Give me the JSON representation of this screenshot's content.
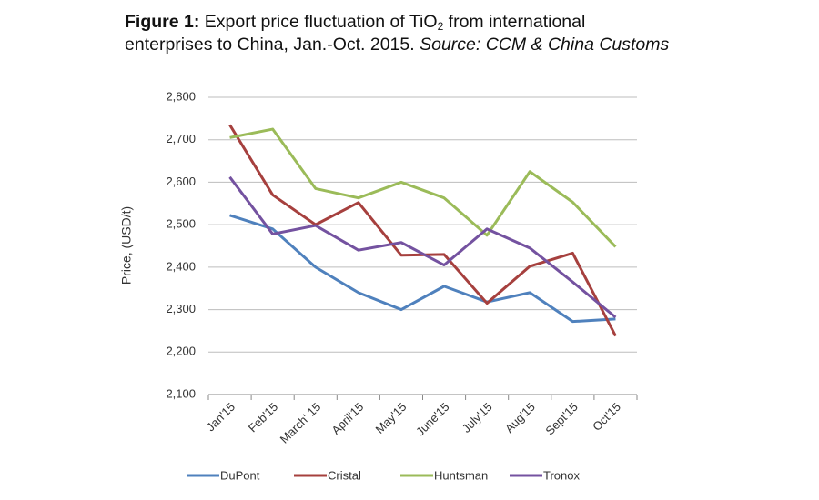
{
  "chart_data": {
    "type": "line",
    "title_label": "Figure 1:",
    "title_parts": [
      "Export price fluctuation of TiO",
      "2",
      " from international",
      "enterprises to China, Jan.-Oct. 2015."
    ],
    "source": "Source: CCM & China Customs",
    "y_label": "Price, (USD/t)",
    "categories": [
      "Jan'15",
      "Feb'15",
      "March' 15",
      "April'15",
      "May'15",
      "June'15",
      "July'15",
      "Aug'15",
      "Sept'15",
      "Oct'15"
    ],
    "series": [
      {
        "name": "DuPont",
        "color": "#4f81bd",
        "values": [
          2522,
          2490,
          2400,
          2340,
          2300,
          2355,
          2318,
          2340,
          2272,
          2278
        ]
      },
      {
        "name": "Cristal",
        "color": "#a6403e",
        "values": [
          2735,
          2570,
          2500,
          2552,
          2428,
          2430,
          2315,
          2402,
          2433,
          2238
        ]
      },
      {
        "name": "Huntsman",
        "color": "#9bbb59",
        "values": [
          2705,
          2725,
          2585,
          2563,
          2600,
          2563,
          2475,
          2625,
          2553,
          2448
        ]
      },
      {
        "name": "Tronox",
        "color": "#7452a0",
        "values": [
          2612,
          2478,
          2498,
          2440,
          2458,
          2405,
          2490,
          2445,
          2365,
          2282
        ]
      }
    ],
    "ylim": [
      2100,
      2800
    ],
    "yticks": [
      {
        "value": 2100,
        "label": "2,100"
      },
      {
        "value": 2200,
        "label": "2,200"
      },
      {
        "value": 2300,
        "label": "2,300"
      },
      {
        "value": 2400,
        "label": "2,400"
      },
      {
        "value": 2500,
        "label": "2,500"
      },
      {
        "value": 2600,
        "label": "2,600"
      },
      {
        "value": 2700,
        "label": "2,700"
      },
      {
        "value": 2800,
        "label": "2,800"
      }
    ],
    "grid": true
  }
}
